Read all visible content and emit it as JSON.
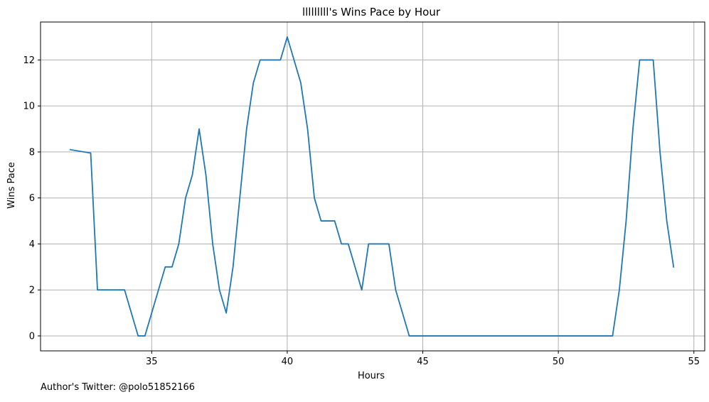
{
  "footer": {
    "author_note": "Author's Twitter: @polo51852166"
  },
  "colors": {
    "line": "#1f77b4",
    "grid": "#b0b0b0",
    "axis": "#000000",
    "background": "#ffffff"
  },
  "chart_data": {
    "type": "line",
    "title": "lllllllll's Wins Pace by Hour",
    "xlabel": "Hours",
    "ylabel": "Wins Pace",
    "xlim": [
      30.9,
      55.4
    ],
    "ylim": [
      -0.65,
      13.65
    ],
    "xticks": [
      35,
      40,
      45,
      50,
      55
    ],
    "yticks": [
      0,
      2,
      4,
      6,
      8,
      10,
      12
    ],
    "grid": true,
    "series": [
      {
        "x": [
          32.0,
          32.75,
          33.0,
          34.0,
          34.5,
          34.75,
          35.5,
          35.75,
          36.0,
          36.25,
          36.5,
          36.75,
          37.0,
          37.25,
          37.5,
          37.75,
          38.0,
          38.5,
          38.75,
          39.0,
          39.75,
          40.0,
          40.5,
          40.75,
          41.0,
          41.25,
          41.75,
          42.0,
          42.25,
          42.75,
          43.0,
          43.75,
          44.0,
          44.5,
          52.0,
          52.25,
          52.5,
          52.75,
          53.0,
          53.5,
          53.75,
          54.0,
          54.25
        ],
        "y": [
          8.1,
          7.95,
          2.0,
          2.0,
          0.0,
          0.0,
          3.0,
          3.0,
          4.0,
          6.0,
          7.0,
          9.0,
          7.0,
          4.0,
          2.0,
          1.0,
          3.0,
          9.0,
          11.0,
          12.0,
          12.0,
          13.0,
          11.0,
          9.0,
          6.0,
          5.0,
          5.0,
          4.0,
          4.0,
          2.0,
          4.0,
          4.0,
          2.0,
          0.0,
          0.0,
          2.0,
          5.0,
          9.0,
          12.0,
          12.0,
          8.0,
          5.0,
          3.0
        ]
      }
    ]
  }
}
